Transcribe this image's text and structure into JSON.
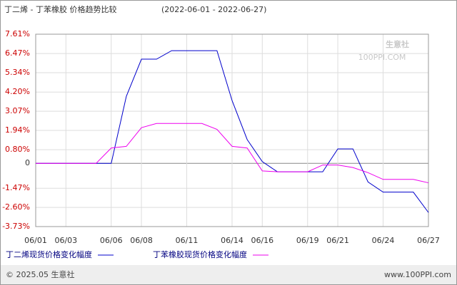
{
  "chart_data": {
    "type": "line",
    "title": "丁二烯 - 丁苯橡胶 价格趋势比较",
    "subtitle": "(2022-06-01 - 2022-06-27)",
    "categories": [
      "06/01",
      null,
      "06/03",
      null,
      null,
      "06/06",
      null,
      "06/08",
      null,
      null,
      "06/11",
      null,
      null,
      "06/14",
      null,
      "06/16",
      null,
      null,
      "06/19",
      null,
      "06/21",
      null,
      null,
      "06/24",
      null,
      null,
      "06/27"
    ],
    "series": [
      {
        "name": "丁二烯现货价格变化幅度",
        "color": "#0000cc",
        "values": [
          0,
          0,
          0,
          0,
          0,
          0,
          3.95,
          6.14,
          6.14,
          6.64,
          6.64,
          6.64,
          6.64,
          3.7,
          1.4,
          0.1,
          -0.5,
          -0.5,
          -0.5,
          -0.5,
          0.85,
          0.85,
          -1.1,
          -1.7,
          -1.7,
          -1.7,
          -2.9
        ]
      },
      {
        "name": "丁苯橡胶现货价格变化幅度",
        "color": "#ee00ee",
        "values": [
          0,
          0,
          0,
          0,
          0,
          0.9,
          1.0,
          2.1,
          2.35,
          2.35,
          2.35,
          2.35,
          2.0,
          1.0,
          0.9,
          -0.45,
          -0.5,
          -0.5,
          -0.5,
          -0.1,
          -0.1,
          -0.25,
          -0.55,
          -0.95,
          -0.95,
          -0.95,
          -1.15
        ]
      }
    ],
    "ylim": [
      -3.73,
      7.61
    ],
    "yticks": [
      {
        "value": 7.61,
        "label": "7.61%"
      },
      {
        "value": 6.47,
        "label": "6.47%"
      },
      {
        "value": 5.34,
        "label": "5.34%"
      },
      {
        "value": 4.2,
        "label": "4.20%"
      },
      {
        "value": 3.07,
        "label": "3.07%"
      },
      {
        "value": 1.94,
        "label": "1.94%"
      },
      {
        "value": 0.8,
        "label": "0.80%"
      },
      0,
      {
        "value": -1.47,
        "label": "-1.47%"
      },
      {
        "value": -2.6,
        "label": "-2.60%"
      },
      {
        "value": -3.73,
        "label": "-3.73%"
      }
    ],
    "grid": true,
    "watermark": "生意社",
    "watermark_sub": "100PPI.COM",
    "footer_left": "© 2025.05 生意社",
    "footer_right": "www.100PPI.com"
  }
}
